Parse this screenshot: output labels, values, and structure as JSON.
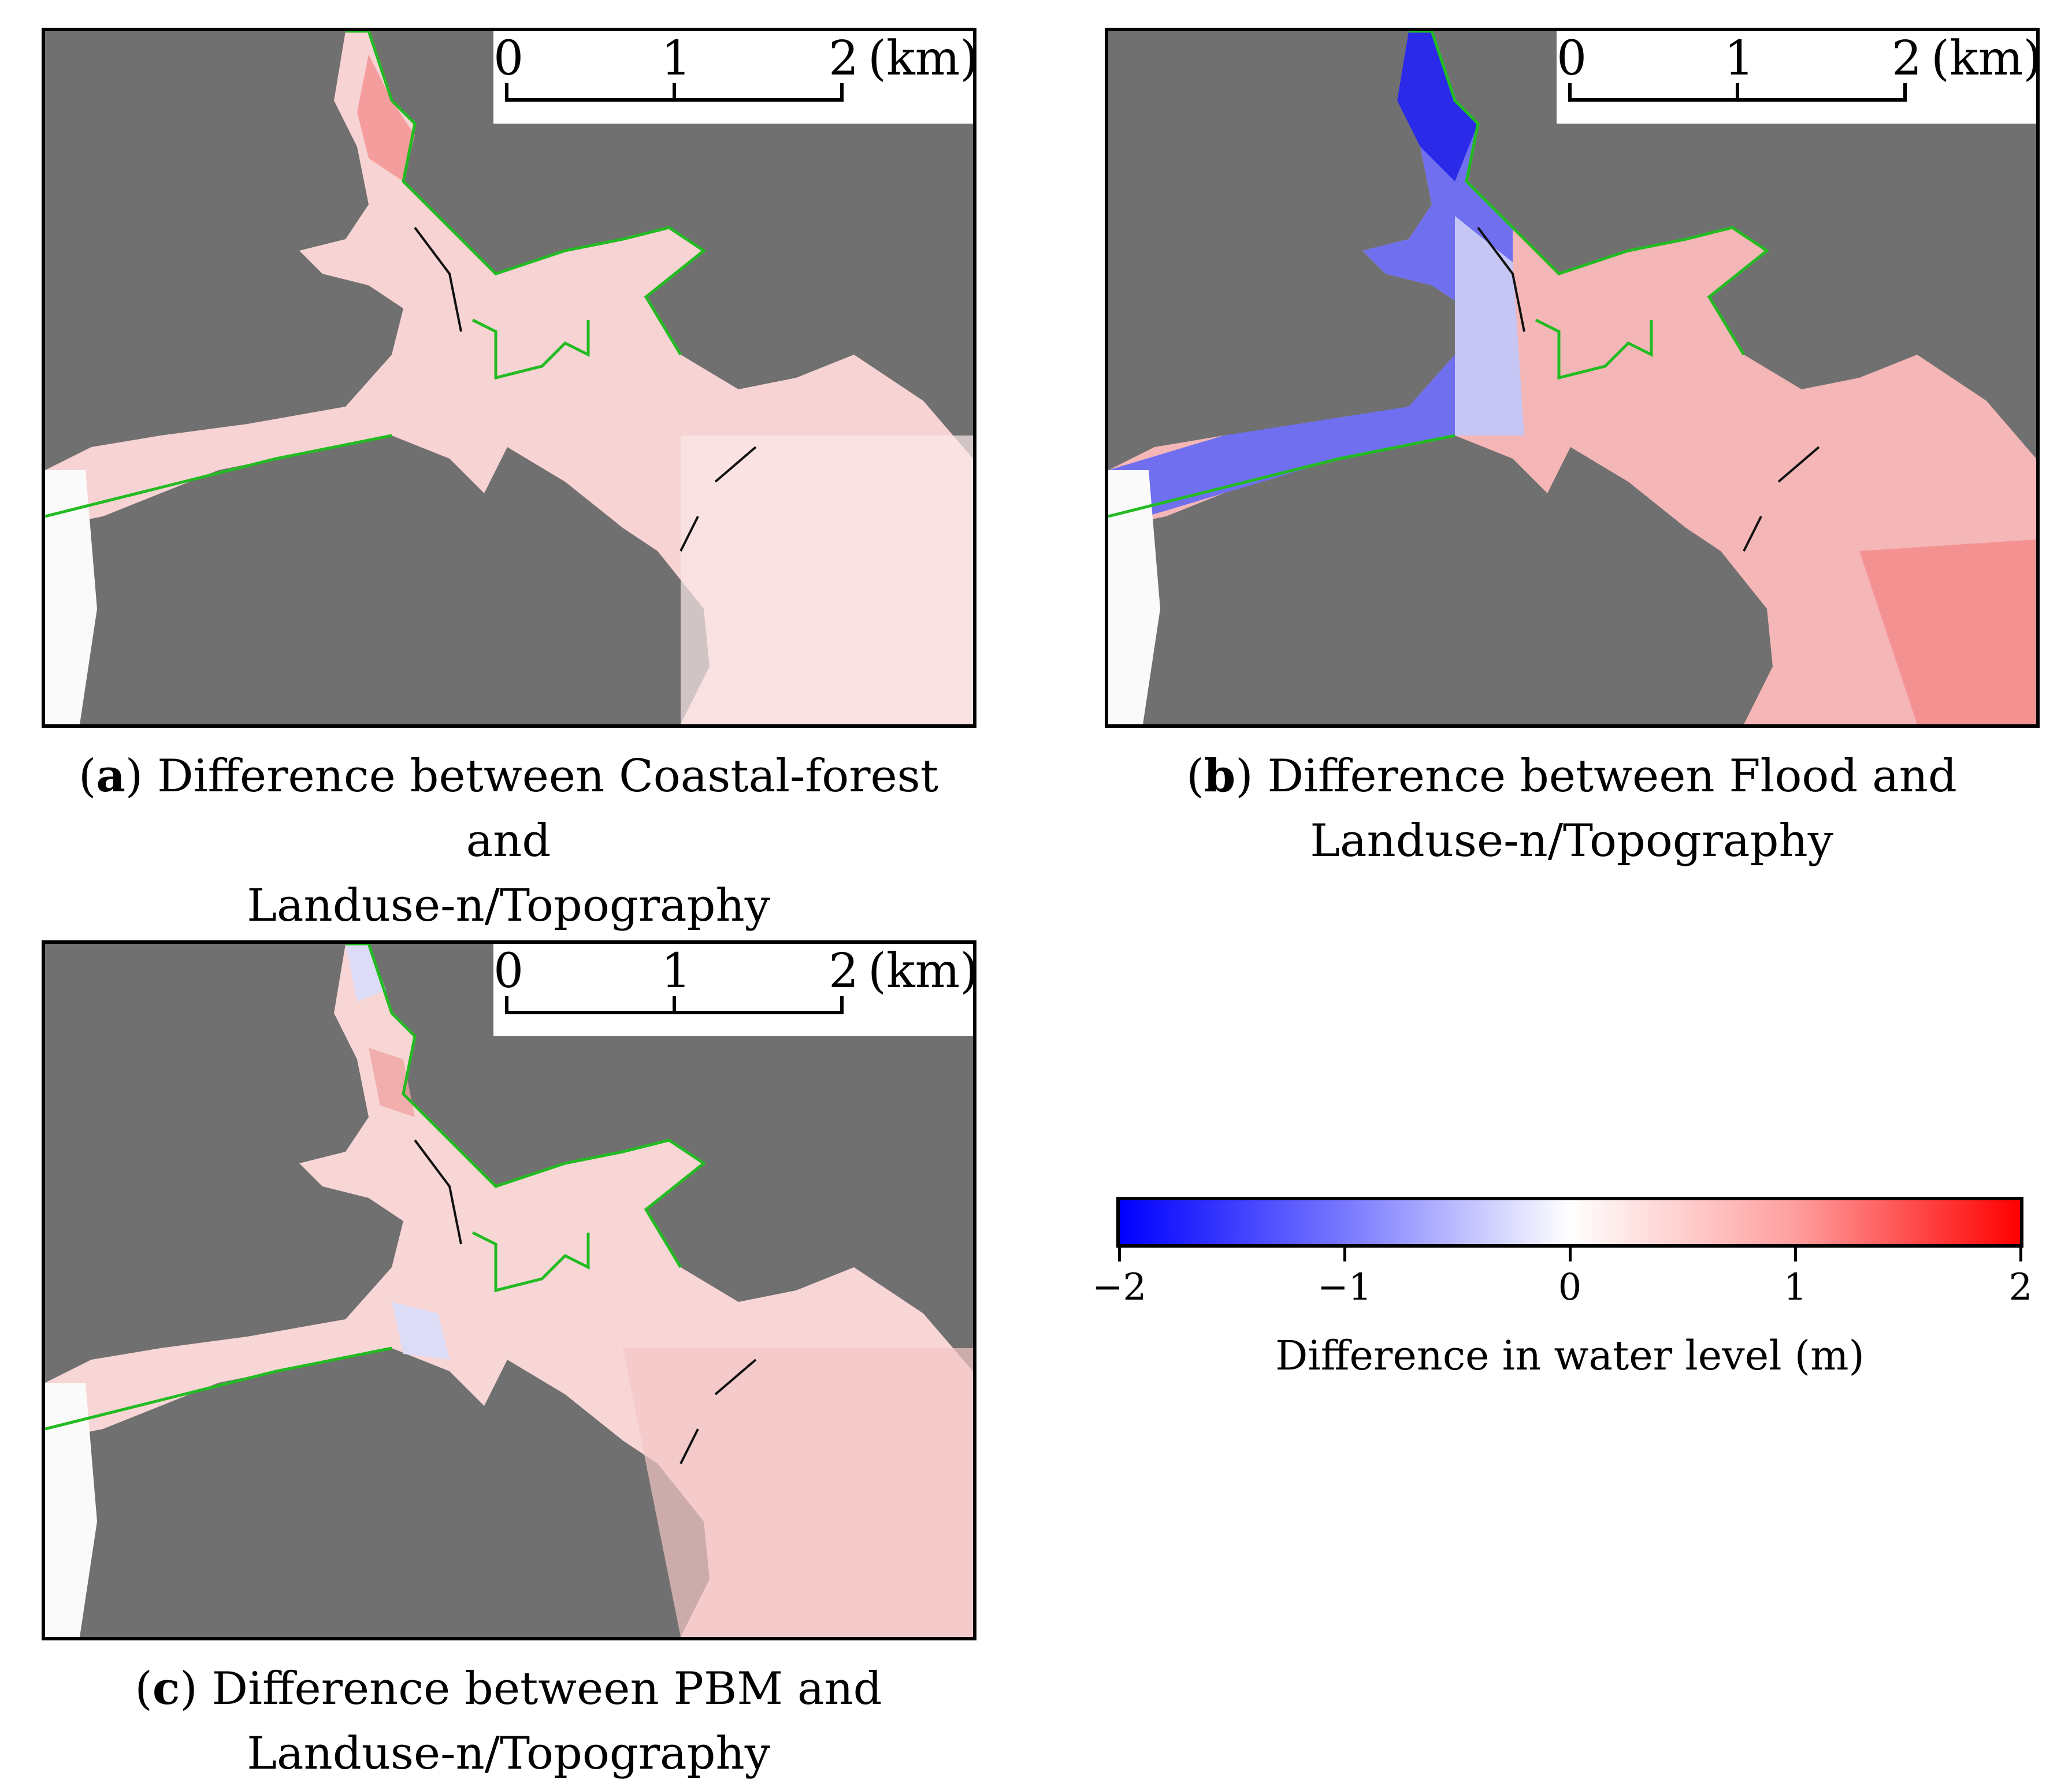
{
  "panels": [
    {
      "letter": "a",
      "caption_line1": "Difference between Coastal-forest and",
      "caption_line2": "Landuse-n/Topography"
    },
    {
      "letter": "b",
      "caption_line1": "Difference between Flood and",
      "caption_line2": "Landuse-n/Topography"
    },
    {
      "letter": "c",
      "caption_line1": "Difference between PBM and",
      "caption_line2": "Landuse-n/Topography"
    }
  ],
  "scale_bar": {
    "labels": [
      "0",
      "1",
      "2"
    ],
    "unit": "(km)"
  },
  "colorbar": {
    "title": "Difference in water level (m)",
    "ticks": [
      "−2",
      "−1",
      "0",
      "1",
      "2"
    ],
    "min": -2,
    "max": 2,
    "colors": {
      "low": "#0000ff",
      "mid": "#ffffff",
      "high": "#ff0000"
    }
  },
  "colors": {
    "land": "#707070",
    "outline": "#22bb22",
    "water_pink": "#f6c9c9"
  }
}
